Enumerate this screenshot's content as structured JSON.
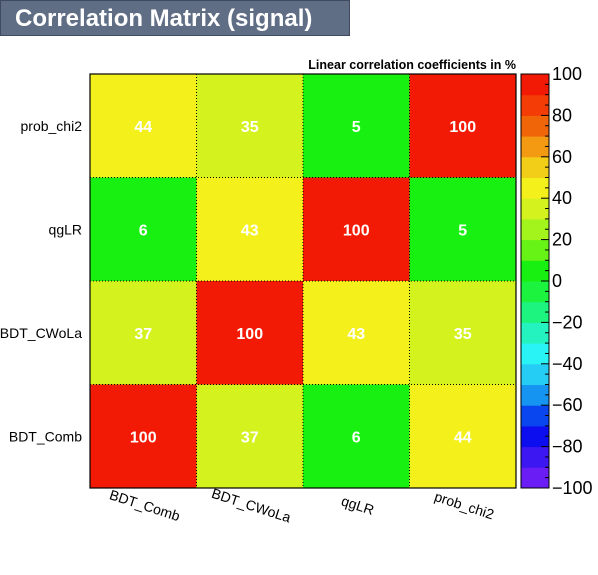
{
  "chart_data": {
    "type": "heatmap",
    "title": "Correlation Matrix (signal)",
    "subtitle": "Linear correlation coefficients in %",
    "x_categories": [
      "BDT_Comb",
      "BDT_CWoLa",
      "qgLR",
      "prob_chi2"
    ],
    "y_categories": [
      "BDT_Comb",
      "BDT_CWoLa",
      "qgLR",
      "prob_chi2"
    ],
    "values": [
      [
        100,
        37,
        6,
        44
      ],
      [
        37,
        100,
        43,
        35
      ],
      [
        6,
        43,
        100,
        5
      ],
      [
        44,
        35,
        5,
        100
      ]
    ],
    "zlim": [
      -100,
      100
    ],
    "z_ticks": [
      {
        "value": 100,
        "label": "100"
      },
      {
        "value": 80,
        "label": "80"
      },
      {
        "value": 60,
        "label": "60"
      },
      {
        "value": 40,
        "label": "40"
      },
      {
        "value": 20,
        "label": "20"
      },
      {
        "value": 0,
        "label": "0"
      },
      {
        "value": -20,
        "label": "−20"
      },
      {
        "value": -40,
        "label": "−40"
      },
      {
        "value": -60,
        "label": "−60"
      },
      {
        "value": -80,
        "label": "−80"
      },
      {
        "value": -100,
        "label": "−100"
      }
    ],
    "palette": [
      "#6a1ef5",
      "#3d17f2",
      "#0d0ef0",
      "#0a46f0",
      "#1694f2",
      "#25cdf4",
      "#29f3f4",
      "#24f3bf",
      "#1df37f",
      "#1cf33f",
      "#17f010",
      "#68f317",
      "#a3f31c",
      "#d4f31e",
      "#f3f01c",
      "#f3ce18",
      "#f39a12",
      "#f06508",
      "#f33c06",
      "#f31a05"
    ]
  }
}
